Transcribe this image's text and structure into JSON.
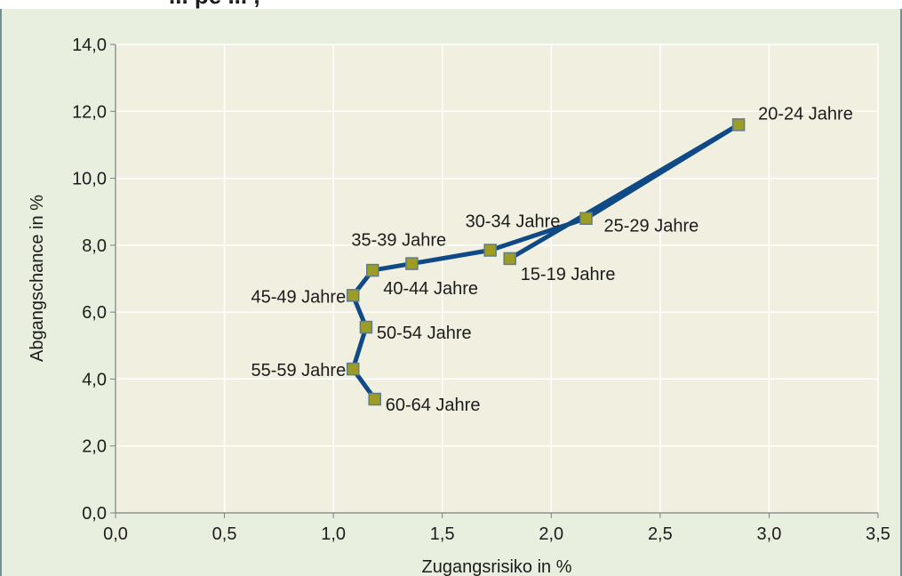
{
  "title_fragment": "... pe ... ,",
  "chart_data": {
    "type": "line",
    "xlabel": "Zugangsrisiko in %",
    "ylabel": "Abgangschance in %",
    "xlim": [
      0,
      3.5
    ],
    "ylim": [
      0,
      14
    ],
    "xticks": [
      "0,0",
      "0,5",
      "1,0",
      "1,5",
      "2,0",
      "2,5",
      "3,0",
      "3,5"
    ],
    "yticks": [
      "0,0",
      "2,0",
      "4,0",
      "6,0",
      "8,0",
      "10,0",
      "12,0",
      "14,0"
    ],
    "grid": true,
    "legend": "none",
    "colors": {
      "line": "#0f4a86",
      "marker_fill": "#9c9c26",
      "marker_edge": "#5f7d8c",
      "plot_bg": "#f0efe0",
      "frame_bg": "#e9efdf"
    },
    "series": [
      {
        "points": [
          {
            "label": "15-19 Jahre",
            "x": 1.81,
            "y": 7.6
          },
          {
            "label": "20-24 Jahre",
            "x": 2.86,
            "y": 11.6
          },
          {
            "label": "25-29 Jahre",
            "x": 2.16,
            "y": 8.8
          },
          {
            "label": "30-34 Jahre",
            "x": 1.72,
            "y": 7.85
          },
          {
            "label": "35-39 Jahre",
            "x": 1.36,
            "y": 7.45
          },
          {
            "label": "40-44 Jahre",
            "x": 1.18,
            "y": 7.25
          },
          {
            "label": "45-49 Jahre",
            "x": 1.09,
            "y": 6.5
          },
          {
            "label": "50-54 Jahre",
            "x": 1.15,
            "y": 5.55
          },
          {
            "label": "55-59 Jahre",
            "x": 1.09,
            "y": 4.3
          },
          {
            "label": "60-64 Jahre",
            "x": 1.19,
            "y": 3.4
          }
        ]
      }
    ]
  }
}
